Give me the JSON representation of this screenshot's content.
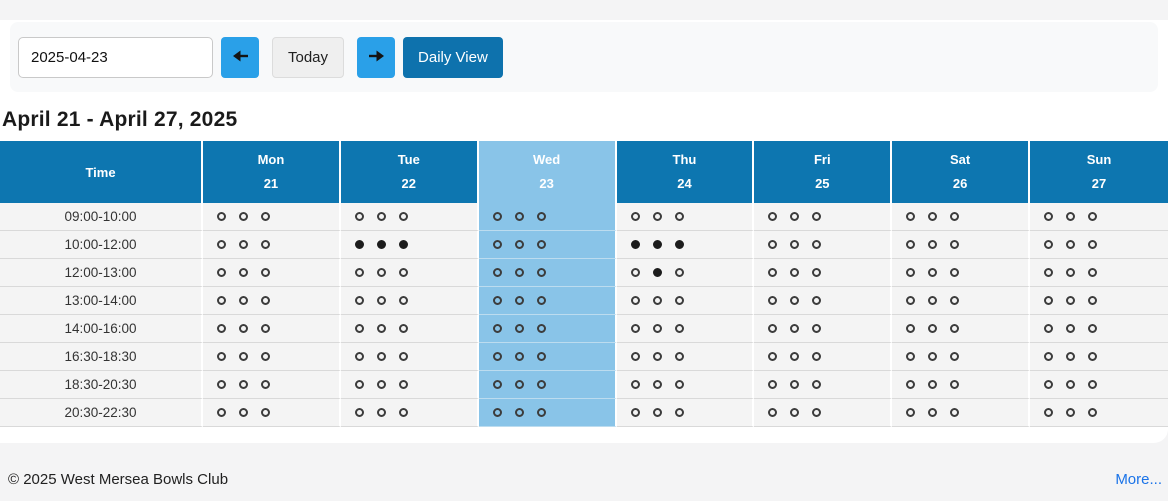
{
  "toolbar": {
    "date_value": "2025-04-23",
    "prev_icon": "previous-day-icon",
    "today_label": "Today",
    "next_icon": "next-day-icon",
    "daily_view_label": "Daily View"
  },
  "heading": "April 21 - April 27, 2025",
  "schedule": {
    "time_header": "Time",
    "days": [
      {
        "name": "Mon",
        "date": "21",
        "highlight": false
      },
      {
        "name": "Tue",
        "date": "22",
        "highlight": false
      },
      {
        "name": "Wed",
        "date": "23",
        "highlight": true
      },
      {
        "name": "Thu",
        "date": "24",
        "highlight": false
      },
      {
        "name": "Fri",
        "date": "25",
        "highlight": false
      },
      {
        "name": "Sat",
        "date": "26",
        "highlight": false
      },
      {
        "name": "Sun",
        "date": "27",
        "highlight": false
      }
    ],
    "rows": [
      {
        "time": "09:00-10:00",
        "slots": [
          [
            0,
            0,
            0
          ],
          [
            0,
            0,
            0
          ],
          [
            0,
            0,
            0
          ],
          [
            0,
            0,
            0
          ],
          [
            0,
            0,
            0
          ],
          [
            0,
            0,
            0
          ],
          [
            0,
            0,
            0
          ]
        ]
      },
      {
        "time": "10:00-12:00",
        "slots": [
          [
            0,
            0,
            0
          ],
          [
            1,
            1,
            1
          ],
          [
            0,
            0,
            0
          ],
          [
            1,
            1,
            1
          ],
          [
            0,
            0,
            0
          ],
          [
            0,
            0,
            0
          ],
          [
            0,
            0,
            0
          ]
        ]
      },
      {
        "time": "12:00-13:00",
        "slots": [
          [
            0,
            0,
            0
          ],
          [
            0,
            0,
            0
          ],
          [
            0,
            0,
            0
          ],
          [
            0,
            1,
            0
          ],
          [
            0,
            0,
            0
          ],
          [
            0,
            0,
            0
          ],
          [
            0,
            0,
            0
          ]
        ]
      },
      {
        "time": "13:00-14:00",
        "slots": [
          [
            0,
            0,
            0
          ],
          [
            0,
            0,
            0
          ],
          [
            0,
            0,
            0
          ],
          [
            0,
            0,
            0
          ],
          [
            0,
            0,
            0
          ],
          [
            0,
            0,
            0
          ],
          [
            0,
            0,
            0
          ]
        ]
      },
      {
        "time": "14:00-16:00",
        "slots": [
          [
            0,
            0,
            0
          ],
          [
            0,
            0,
            0
          ],
          [
            0,
            0,
            0
          ],
          [
            0,
            0,
            0
          ],
          [
            0,
            0,
            0
          ],
          [
            0,
            0,
            0
          ],
          [
            0,
            0,
            0
          ]
        ]
      },
      {
        "time": "16:30-18:30",
        "slots": [
          [
            0,
            0,
            0
          ],
          [
            0,
            0,
            0
          ],
          [
            0,
            0,
            0
          ],
          [
            0,
            0,
            0
          ],
          [
            0,
            0,
            0
          ],
          [
            0,
            0,
            0
          ],
          [
            0,
            0,
            0
          ]
        ]
      },
      {
        "time": "18:30-20:30",
        "slots": [
          [
            0,
            0,
            0
          ],
          [
            0,
            0,
            0
          ],
          [
            0,
            0,
            0
          ],
          [
            0,
            0,
            0
          ],
          [
            0,
            0,
            0
          ],
          [
            0,
            0,
            0
          ],
          [
            0,
            0,
            0
          ]
        ]
      },
      {
        "time": "20:30-22:30",
        "slots": [
          [
            0,
            0,
            0
          ],
          [
            0,
            0,
            0
          ],
          [
            0,
            0,
            0
          ],
          [
            0,
            0,
            0
          ],
          [
            0,
            0,
            0
          ],
          [
            0,
            0,
            0
          ],
          [
            0,
            0,
            0
          ]
        ]
      }
    ]
  },
  "footer": {
    "copyright": "© 2025 West Mersea Bowls Club",
    "more_label": "More..."
  },
  "colors": {
    "header_blue": "#0d76b0",
    "highlight_blue": "#89c4e8",
    "arrow_button_blue": "#2aa0e8",
    "daily_view_blue": "#0e72ad",
    "link_blue": "#1a73e8",
    "row_background": "#f4f4f4",
    "page_background": "#f4f4f5"
  }
}
